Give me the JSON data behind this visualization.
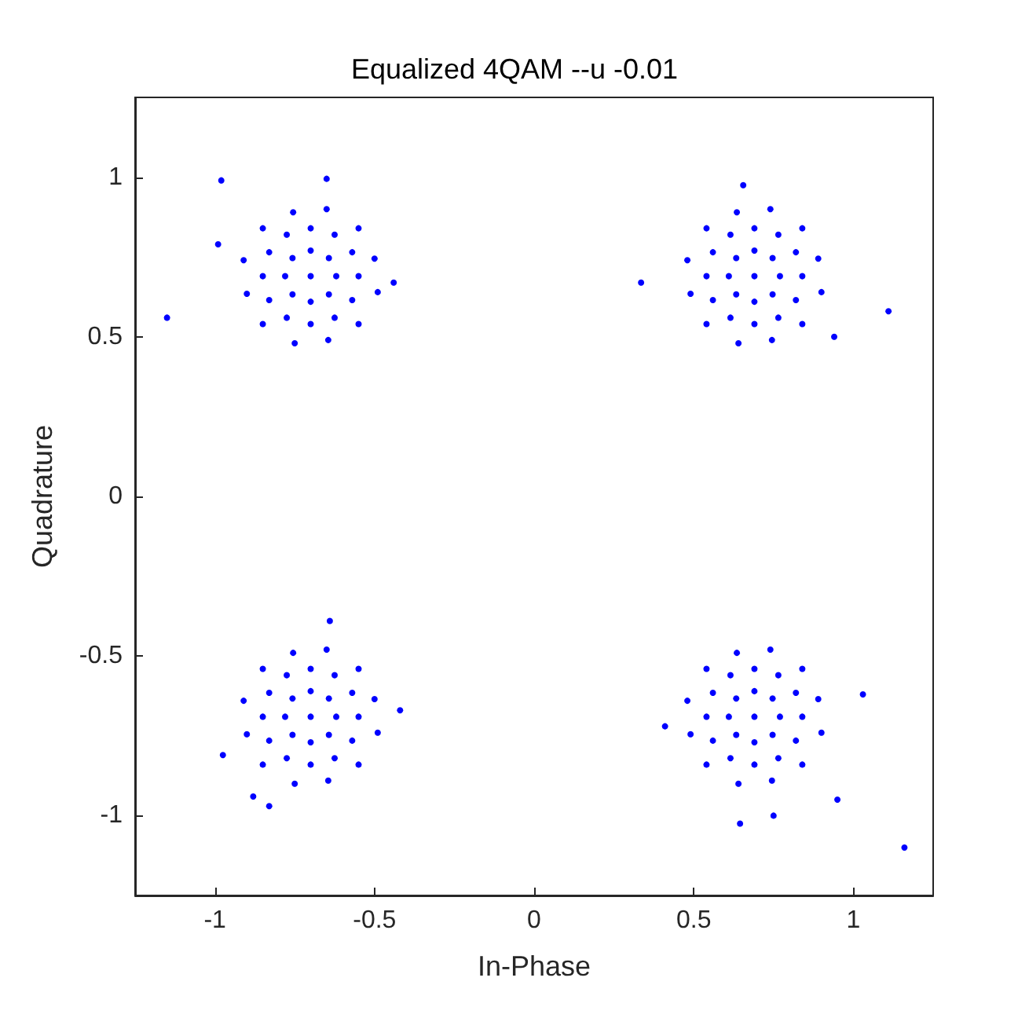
{
  "chart_data": {
    "type": "scatter",
    "title": "Equalized 4QAM --u -0.01",
    "xlabel": "In-Phase",
    "ylabel": "Quadrature",
    "xlim": [
      -1.25,
      1.25
    ],
    "ylim": [
      -1.25,
      1.25
    ],
    "xticks": [
      -1,
      -0.5,
      0,
      0.5,
      1
    ],
    "yticks": [
      -1,
      -0.5,
      0,
      0.5,
      1
    ],
    "grid": false,
    "marker": "circle",
    "series": [
      {
        "color": "#0000ff",
        "x": [
          -0.7,
          -0.62,
          -0.643,
          -0.7,
          -0.757,
          -0.78,
          -0.757,
          -0.7,
          -0.643,
          -0.55,
          -0.57,
          -0.625,
          -0.7,
          -0.775,
          -0.83,
          -0.85,
          -0.83,
          -0.775,
          -0.7,
          -0.625,
          -0.57,
          -0.5,
          -0.55,
          -0.65,
          -0.755,
          -0.85,
          -0.91,
          -0.9,
          -0.85,
          -0.75,
          -0.645,
          -0.55,
          -0.49,
          -0.98,
          -0.65,
          -1.15,
          -0.99,
          -0.44,
          0.69,
          0.77,
          0.747,
          0.69,
          0.633,
          0.61,
          0.633,
          0.69,
          0.747,
          0.84,
          0.82,
          0.765,
          0.69,
          0.615,
          0.56,
          0.54,
          0.56,
          0.615,
          0.69,
          0.765,
          0.82,
          0.89,
          0.84,
          0.74,
          0.635,
          0.54,
          0.48,
          0.49,
          0.54,
          0.64,
          0.745,
          0.84,
          0.9,
          0.335,
          1.11,
          0.655,
          0.94,
          -0.7,
          -0.62,
          -0.643,
          -0.7,
          -0.757,
          -0.78,
          -0.757,
          -0.7,
          -0.643,
          -0.55,
          -0.57,
          -0.625,
          -0.7,
          -0.775,
          -0.83,
          -0.85,
          -0.83,
          -0.775,
          -0.7,
          -0.625,
          -0.57,
          -0.5,
          -0.55,
          -0.65,
          -0.755,
          -0.85,
          -0.91,
          -0.9,
          -0.85,
          -0.75,
          -0.645,
          -0.55,
          -0.49,
          -0.88,
          -0.83,
          -0.64,
          -0.42,
          -0.975,
          0.69,
          0.77,
          0.747,
          0.69,
          0.633,
          0.61,
          0.633,
          0.69,
          0.747,
          0.84,
          0.82,
          0.765,
          0.69,
          0.615,
          0.56,
          0.54,
          0.56,
          0.615,
          0.69,
          0.765,
          0.82,
          0.89,
          0.84,
          0.74,
          0.635,
          0.54,
          0.48,
          0.49,
          0.54,
          0.64,
          0.745,
          0.84,
          0.9,
          1.16,
          1.03,
          0.645,
          0.75,
          0.41,
          0.95
        ],
        "values": [
          0.69,
          0.69,
          0.747,
          0.77,
          0.747,
          0.69,
          0.633,
          0.61,
          0.633,
          0.69,
          0.765,
          0.82,
          0.84,
          0.82,
          0.765,
          0.69,
          0.615,
          0.56,
          0.54,
          0.56,
          0.615,
          0.745,
          0.84,
          0.9,
          0.89,
          0.84,
          0.74,
          0.635,
          0.54,
          0.48,
          0.49,
          0.54,
          0.64,
          0.99,
          0.995,
          0.56,
          0.79,
          0.67,
          0.69,
          0.69,
          0.747,
          0.77,
          0.747,
          0.69,
          0.633,
          0.61,
          0.633,
          0.69,
          0.765,
          0.82,
          0.84,
          0.82,
          0.765,
          0.69,
          0.615,
          0.56,
          0.54,
          0.56,
          0.615,
          0.745,
          0.84,
          0.9,
          0.89,
          0.84,
          0.74,
          0.635,
          0.54,
          0.48,
          0.49,
          0.54,
          0.64,
          0.67,
          0.58,
          0.975,
          0.5,
          -0.69,
          -0.69,
          -0.633,
          -0.61,
          -0.633,
          -0.69,
          -0.747,
          -0.77,
          -0.747,
          -0.69,
          -0.615,
          -0.56,
          -0.54,
          -0.56,
          -0.615,
          -0.69,
          -0.765,
          -0.82,
          -0.84,
          -0.82,
          -0.765,
          -0.635,
          -0.54,
          -0.48,
          -0.49,
          -0.54,
          -0.64,
          -0.745,
          -0.84,
          -0.9,
          -0.89,
          -0.84,
          -0.74,
          -0.94,
          -0.97,
          -0.39,
          -0.67,
          -0.81,
          -0.69,
          -0.69,
          -0.633,
          -0.61,
          -0.633,
          -0.69,
          -0.747,
          -0.77,
          -0.747,
          -0.69,
          -0.615,
          -0.56,
          -0.54,
          -0.56,
          -0.615,
          -0.69,
          -0.765,
          -0.82,
          -0.84,
          -0.82,
          -0.765,
          -0.635,
          -0.54,
          -0.48,
          -0.49,
          -0.54,
          -0.64,
          -0.745,
          -0.84,
          -0.9,
          -0.89,
          -0.84,
          -0.74,
          -1.1,
          -0.62,
          -1.025,
          -1.0,
          -0.72,
          -0.95
        ]
      }
    ]
  }
}
